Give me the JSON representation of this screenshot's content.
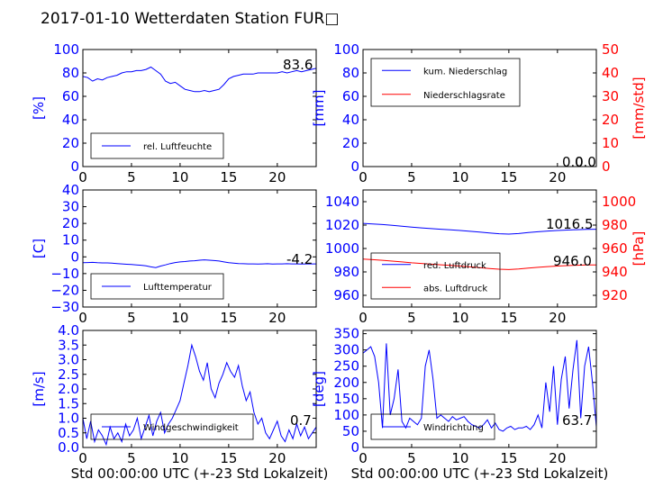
{
  "title": "2017-01-10 Wetterdaten Station FUR□",
  "colors": {
    "primary": "#0000ff",
    "secondary": "#ff0000",
    "light": "#8080ff",
    "axis": "#000000"
  },
  "chart_data": [
    {
      "id": "humidity",
      "type": "line",
      "xlim": [
        0,
        24
      ],
      "xticks": [
        "0",
        "5",
        "10",
        "15",
        "20"
      ],
      "ylim": [
        0,
        100
      ],
      "yticks": [
        "0",
        "20",
        "40",
        "60",
        "80",
        "100"
      ],
      "ylabel": "[%]",
      "ycolor": "#0000ff",
      "annotation": "83.6",
      "legend": {
        "position": "lower-left",
        "entries": [
          {
            "label": "rel. Luftfeuchte",
            "color": "#0000ff"
          }
        ]
      },
      "series": [
        {
          "name": "rel. Luftfeuchte",
          "color": "#0000ff",
          "axis": "left",
          "x": [
            0,
            0.5,
            1,
            1.5,
            2,
            2.5,
            3,
            3.5,
            4,
            4.5,
            5,
            5.5,
            6,
            6.5,
            7,
            7.5,
            8,
            8.5,
            9,
            9.5,
            10,
            10.5,
            11,
            11.5,
            12,
            12.5,
            13,
            13.5,
            14,
            14.5,
            15,
            15.5,
            16,
            16.5,
            17,
            17.5,
            18,
            18.5,
            19,
            19.5,
            20,
            20.5,
            21,
            21.5,
            22,
            22.5,
            23,
            23.5,
            24
          ],
          "y": [
            77,
            76,
            73,
            75,
            74,
            76,
            77,
            78,
            80,
            81,
            81,
            82,
            82,
            83,
            85,
            82,
            79,
            73,
            71,
            72,
            69,
            66,
            65,
            64,
            64,
            65,
            64,
            65,
            66,
            70,
            75,
            77,
            78,
            79,
            79,
            79,
            80,
            80,
            80,
            80,
            80,
            81,
            80,
            81,
            82,
            81,
            82,
            83,
            84
          ]
        }
      ]
    },
    {
      "id": "precipitation",
      "type": "line",
      "xlim": [
        0,
        24
      ],
      "xticks": [
        "0",
        "5",
        "10",
        "15",
        "20"
      ],
      "ylim": [
        0,
        100
      ],
      "yticks": [
        "0",
        "20",
        "40",
        "60",
        "80",
        "100"
      ],
      "ylabel": "[mm]",
      "ycolor": "#0000ff",
      "ylim2": [
        0,
        50
      ],
      "yticks2": [
        "0",
        "10",
        "20",
        "30",
        "40",
        "50"
      ],
      "ylabel2": "[mm/std]",
      "ycolor2": "#ff0000",
      "annotation": "0.0",
      "annotation2": "0.0",
      "legend": {
        "position": "upper-left",
        "entries": [
          {
            "label": "kum. Niederschlag",
            "color": "#0000ff"
          },
          {
            "label": "Niederschlagsrate",
            "color": "#ff0000"
          }
        ]
      },
      "series": [
        {
          "name": "kum. Niederschlag",
          "color": "#0000ff",
          "axis": "left",
          "x": [
            0,
            24
          ],
          "y": [
            0,
            0
          ]
        },
        {
          "name": "Niederschlagsrate",
          "color": "#ff0000",
          "axis": "right",
          "x": [
            0,
            24
          ],
          "y": [
            0,
            0
          ]
        }
      ]
    },
    {
      "id": "temperature",
      "type": "line",
      "xlim": [
        0,
        24
      ],
      "xticks": [
        "0",
        "5",
        "10",
        "15",
        "20"
      ],
      "ylim": [
        -30,
        40
      ],
      "yticks": [
        "−30",
        "−20",
        "−10",
        "0",
        "10",
        "20",
        "30",
        "40"
      ],
      "ylabel": "[C]",
      "ycolor": "#0000ff",
      "annotation": "-4.2",
      "legend": {
        "position": "lower-left",
        "entries": [
          {
            "label": "Lufttemperatur",
            "color": "#0000ff"
          }
        ]
      },
      "series": [
        {
          "name": "Lufttemperatur",
          "color": "#0000ff",
          "axis": "left",
          "x": [
            0,
            0.5,
            1,
            1.5,
            2,
            2.5,
            3,
            3.5,
            4,
            4.5,
            5,
            5.5,
            6,
            6.5,
            7,
            7.5,
            8,
            8.5,
            9,
            9.5,
            10,
            10.5,
            11,
            11.5,
            12,
            12.5,
            13,
            13.5,
            14,
            14.5,
            15,
            15.5,
            16,
            16.5,
            17,
            17.5,
            18,
            18.5,
            19,
            19.5,
            20,
            20.5,
            21,
            21.5,
            22,
            22.5,
            23,
            23.5,
            24
          ],
          "y": [
            -3.5,
            -3.4,
            -3.3,
            -3.5,
            -3.6,
            -3.6,
            -3.8,
            -4.0,
            -4.2,
            -4.4,
            -4.6,
            -4.8,
            -5.0,
            -5.4,
            -6.0,
            -6.4,
            -5.5,
            -4.8,
            -4.0,
            -3.4,
            -3.0,
            -2.8,
            -2.5,
            -2.3,
            -2.0,
            -1.8,
            -2.0,
            -2.2,
            -2.5,
            -3.0,
            -3.5,
            -3.8,
            -4.0,
            -4.1,
            -4.2,
            -4.2,
            -4.3,
            -4.2,
            -4.1,
            -4.3,
            -4.2,
            -4.2,
            -4.1,
            -4.2,
            -4.2,
            -4.3,
            -4.2,
            -4.2,
            -4.2
          ]
        }
      ]
    },
    {
      "id": "pressure",
      "type": "line",
      "xlim": [
        0,
        24
      ],
      "xticks": [
        "0",
        "5",
        "10",
        "15",
        "20"
      ],
      "ylim": [
        950,
        1050
      ],
      "yticks": [
        "960",
        "980",
        "1000",
        "1020",
        "1040"
      ],
      "ycolor": "#0000ff",
      "ylim2": [
        910,
        1010
      ],
      "yticks2": [
        "920",
        "940",
        "960",
        "980",
        "1000"
      ],
      "ylabel2": "[hPa]",
      "ycolor2": "#ff0000",
      "annotation": "1016.5",
      "annotation2": "946.0",
      "legend": {
        "position": "lower-left",
        "entries": [
          {
            "label": "red. Luftdruck",
            "color": "#0000ff"
          },
          {
            "label": "abs. Luftdruck",
            "color": "#ff0000"
          }
        ]
      },
      "series": [
        {
          "name": "red. Luftdruck",
          "color": "#0000ff",
          "axis": "left",
          "x": [
            0,
            1,
            2,
            3,
            4,
            5,
            6,
            7,
            8,
            9,
            10,
            11,
            12,
            13,
            14,
            15,
            16,
            17,
            18,
            19,
            20,
            21,
            22,
            23,
            24
          ],
          "y": [
            1021.5,
            1021.0,
            1020.5,
            1019.8,
            1019.0,
            1018.3,
            1017.6,
            1017.0,
            1016.5,
            1016.0,
            1015.4,
            1014.7,
            1014.0,
            1013.3,
            1012.6,
            1012.3,
            1012.8,
            1013.6,
            1014.3,
            1014.9,
            1015.4,
            1015.8,
            1016.1,
            1016.3,
            1016.5
          ]
        },
        {
          "name": "abs. Luftdruck",
          "color": "#ff0000",
          "axis": "right",
          "x": [
            0,
            1,
            2,
            3,
            4,
            5,
            6,
            7,
            8,
            9,
            10,
            11,
            12,
            13,
            14,
            15,
            16,
            17,
            18,
            19,
            20,
            21,
            22,
            23,
            24
          ],
          "y": [
            951.0,
            950.5,
            949.9,
            949.2,
            948.5,
            947.8,
            947.2,
            946.6,
            946.1,
            945.6,
            945.0,
            944.3,
            943.6,
            942.9,
            942.3,
            942.0,
            942.5,
            943.2,
            943.9,
            944.5,
            945.0,
            945.4,
            945.7,
            945.9,
            946.0
          ]
        }
      ]
    },
    {
      "id": "windspeed",
      "type": "line",
      "xlim": [
        0,
        24
      ],
      "xticks": [
        "0",
        "5",
        "10",
        "15",
        "20"
      ],
      "ylim": [
        0,
        4
      ],
      "yticks": [
        "0.0",
        "0.5",
        "1.0",
        "1.5",
        "2.0",
        "2.5",
        "3.0",
        "3.5",
        "4.0"
      ],
      "ylabel": "[m/s]",
      "ycolor": "#0000ff",
      "xlabel": "Std 00:00:00 UTC (+-23 Std Lokalzeit)",
      "annotation": "0.7",
      "legend": {
        "position": "lower-left",
        "entries": [
          {
            "label": "Windgeschwindigkeit",
            "color": "#0000ff"
          }
        ]
      },
      "series": [
        {
          "name": "Windgeschwindigkeit",
          "color": "#0000ff",
          "axis": "left",
          "x": [
            0,
            0.4,
            0.8,
            1.2,
            1.6,
            2,
            2.4,
            2.8,
            3.2,
            3.6,
            4,
            4.4,
            4.8,
            5.2,
            5.6,
            6,
            6.4,
            6.8,
            7.2,
            7.6,
            8,
            8.4,
            8.8,
            9.2,
            9.6,
            10,
            10.4,
            10.8,
            11.2,
            11.6,
            12,
            12.4,
            12.8,
            13.2,
            13.6,
            14,
            14.4,
            14.8,
            15.2,
            15.6,
            16,
            16.4,
            16.8,
            17.2,
            17.6,
            18,
            18.4,
            18.8,
            19.2,
            19.6,
            20,
            20.4,
            20.8,
            21.2,
            21.6,
            22,
            22.4,
            22.8,
            23.2,
            23.6,
            24
          ],
          "y": [
            1.0,
            0.3,
            0.9,
            0.2,
            0.6,
            0.4,
            0.1,
            0.7,
            0.3,
            0.5,
            0.2,
            0.8,
            0.4,
            0.6,
            1.0,
            0.3,
            0.7,
            1.1,
            0.4,
            0.9,
            1.2,
            0.5,
            0.8,
            1.0,
            1.3,
            1.6,
            2.2,
            2.8,
            3.5,
            3.1,
            2.6,
            2.3,
            2.9,
            2.0,
            1.7,
            2.2,
            2.5,
            2.9,
            2.6,
            2.4,
            2.8,
            2.1,
            1.6,
            1.9,
            1.2,
            0.8,
            1.0,
            0.5,
            0.3,
            0.6,
            0.9,
            0.4,
            0.2,
            0.6,
            0.3,
            0.8,
            0.4,
            0.7,
            0.3,
            0.5,
            0.7
          ]
        }
      ]
    },
    {
      "id": "winddirection",
      "type": "line",
      "xlim": [
        0,
        24
      ],
      "xticks": [
        "0",
        "5",
        "10",
        "15",
        "20"
      ],
      "ylim": [
        0,
        360
      ],
      "yticks": [
        "0",
        "50",
        "100",
        "150",
        "200",
        "250",
        "300",
        "350"
      ],
      "ylabel": "[deg]",
      "ycolor": "#0000ff",
      "xlabel": "Std 00:00:00 UTC (+-23 Std Lokalzeit)",
      "annotation": "63.7",
      "legend": {
        "position": "lower-left",
        "entries": [
          {
            "label": "Windrichtung",
            "color": "#0000ff"
          }
        ]
      },
      "series": [
        {
          "name": "Windrichtung",
          "color": "#0000ff",
          "axis": "left",
          "x": [
            0,
            0.4,
            0.8,
            1.2,
            1.6,
            2,
            2.4,
            2.8,
            3.2,
            3.6,
            4,
            4.4,
            4.8,
            5.2,
            5.6,
            6,
            6.4,
            6.8,
            7.2,
            7.6,
            8,
            8.4,
            8.8,
            9.2,
            9.6,
            10,
            10.4,
            10.8,
            11.2,
            11.6,
            12,
            12.4,
            12.8,
            13.2,
            13.6,
            14,
            14.4,
            14.8,
            15.2,
            15.6,
            16,
            16.4,
            16.8,
            17.2,
            17.6,
            18,
            18.4,
            18.8,
            19.2,
            19.6,
            20,
            20.4,
            20.8,
            21.2,
            21.6,
            22,
            22.4,
            22.8,
            23.2,
            23.6,
            24
          ],
          "y": [
            290,
            300,
            310,
            280,
            200,
            60,
            320,
            100,
            150,
            240,
            80,
            60,
            90,
            80,
            70,
            90,
            250,
            300,
            210,
            90,
            100,
            90,
            80,
            95,
            85,
            90,
            95,
            80,
            70,
            65,
            60,
            70,
            85,
            60,
            75,
            55,
            50,
            60,
            65,
            55,
            60,
            60,
            65,
            55,
            70,
            100,
            60,
            200,
            110,
            250,
            70,
            210,
            280,
            120,
            240,
            330,
            90,
            250,
            310,
            200,
            64
          ]
        }
      ]
    }
  ]
}
